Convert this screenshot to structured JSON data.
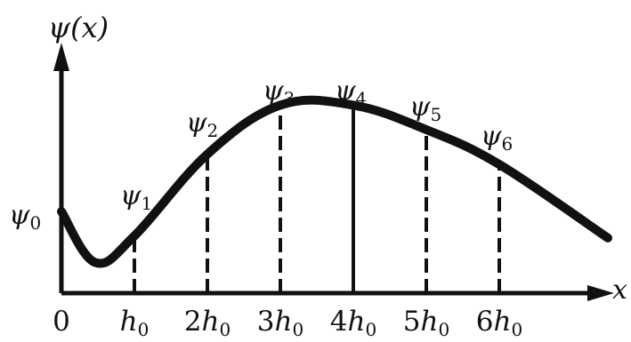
{
  "figure": {
    "y_axis_label": "ψ(x)",
    "x_axis_label": "x"
  },
  "chart_data": {
    "type": "line",
    "xlabel": "x",
    "ylabel": "ψ(x)",
    "x_ticks": [
      "0",
      "h0",
      "2h0",
      "3h0",
      "4h0",
      "5h0",
      "6h0"
    ],
    "samples": [
      {
        "x": "0",
        "label": "ψ0",
        "value": 0.4
      },
      {
        "x": "h0",
        "label": "ψ1",
        "value": 0.28
      },
      {
        "x": "2h0",
        "label": "ψ2",
        "value": 0.68
      },
      {
        "x": "3h0",
        "label": "ψ3",
        "value": 0.92
      },
      {
        "x": "4h0",
        "label": "ψ4",
        "value": 0.92
      },
      {
        "x": "5h0",
        "label": "ψ5",
        "value": 0.8
      },
      {
        "x": "6h0",
        "label": "ψ6",
        "value": 0.63
      }
    ],
    "line_style": {
      "curve": "solid-thick",
      "verticals": [
        "solid",
        "dashed",
        "dashed",
        "dashed",
        "solid",
        "dashed",
        "dashed"
      ]
    }
  }
}
